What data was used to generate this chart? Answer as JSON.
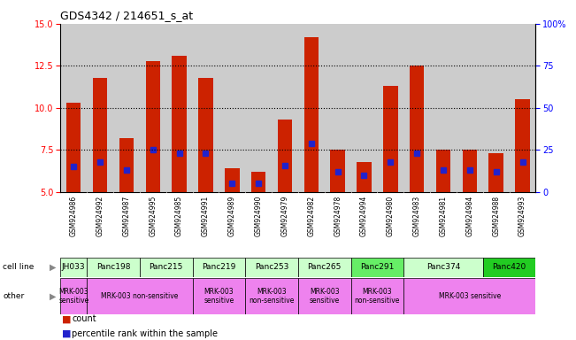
{
  "title": "GDS4342 / 214651_s_at",
  "samples": [
    "GSM924986",
    "GSM924992",
    "GSM924987",
    "GSM924995",
    "GSM924985",
    "GSM924991",
    "GSM924989",
    "GSM924990",
    "GSM924979",
    "GSM924982",
    "GSM924978",
    "GSM924994",
    "GSM924980",
    "GSM924983",
    "GSM924981",
    "GSM924984",
    "GSM924988",
    "GSM924993"
  ],
  "counts": [
    10.3,
    11.8,
    8.2,
    12.8,
    13.1,
    11.8,
    6.4,
    6.2,
    9.3,
    14.2,
    7.5,
    6.8,
    11.3,
    12.5,
    7.5,
    7.5,
    7.3,
    10.5
  ],
  "percentile_rank": [
    6.5,
    6.8,
    6.3,
    7.5,
    7.3,
    7.3,
    5.5,
    5.5,
    6.6,
    7.9,
    6.2,
    6.0,
    6.8,
    7.3,
    6.3,
    6.3,
    6.2,
    6.8
  ],
  "cell_lines": [
    {
      "label": "JH033",
      "start": 0,
      "end": 1,
      "color": "#ccffcc"
    },
    {
      "label": "Panc198",
      "start": 1,
      "end": 3,
      "color": "#ccffcc"
    },
    {
      "label": "Panc215",
      "start": 3,
      "end": 5,
      "color": "#ccffcc"
    },
    {
      "label": "Panc219",
      "start": 5,
      "end": 7,
      "color": "#ccffcc"
    },
    {
      "label": "Panc253",
      "start": 7,
      "end": 9,
      "color": "#ccffcc"
    },
    {
      "label": "Panc265",
      "start": 9,
      "end": 11,
      "color": "#ccffcc"
    },
    {
      "label": "Panc291",
      "start": 11,
      "end": 13,
      "color": "#66ee66"
    },
    {
      "label": "Panc374",
      "start": 13,
      "end": 16,
      "color": "#ccffcc"
    },
    {
      "label": "Panc420",
      "start": 16,
      "end": 18,
      "color": "#22cc22"
    }
  ],
  "other_groups": [
    {
      "label": "MRK-003\nsensitive",
      "start": 0,
      "end": 1,
      "color": "#ee82ee"
    },
    {
      "label": "MRK-003 non-sensitive",
      "start": 1,
      "end": 5,
      "color": "#ee82ee"
    },
    {
      "label": "MRK-003\nsensitive",
      "start": 5,
      "end": 7,
      "color": "#ee82ee"
    },
    {
      "label": "MRK-003\nnon-sensitive",
      "start": 7,
      "end": 9,
      "color": "#ee82ee"
    },
    {
      "label": "MRK-003\nsensitive",
      "start": 9,
      "end": 11,
      "color": "#ee82ee"
    },
    {
      "label": "MRK-003\nnon-sensitive",
      "start": 11,
      "end": 13,
      "color": "#ee82ee"
    },
    {
      "label": "MRK-003 sensitive",
      "start": 13,
      "end": 18,
      "color": "#ee82ee"
    }
  ],
  "ylim_left": [
    5,
    15
  ],
  "yticks_left": [
    5,
    7.5,
    10,
    12.5,
    15
  ],
  "ylim_right": [
    0,
    100
  ],
  "yticks_right": [
    0,
    25,
    50,
    75,
    100
  ],
  "bar_color": "#cc2200",
  "marker_color": "#2222cc",
  "bar_width": 0.55,
  "sample_bg_color": "#cccccc",
  "background_color": "#ffffff",
  "dotted_lines": [
    7.5,
    10,
    12.5
  ],
  "legend_items": [
    {
      "label": "count",
      "color": "#cc2200"
    },
    {
      "label": "percentile rank within the sample",
      "color": "#2222cc"
    }
  ]
}
